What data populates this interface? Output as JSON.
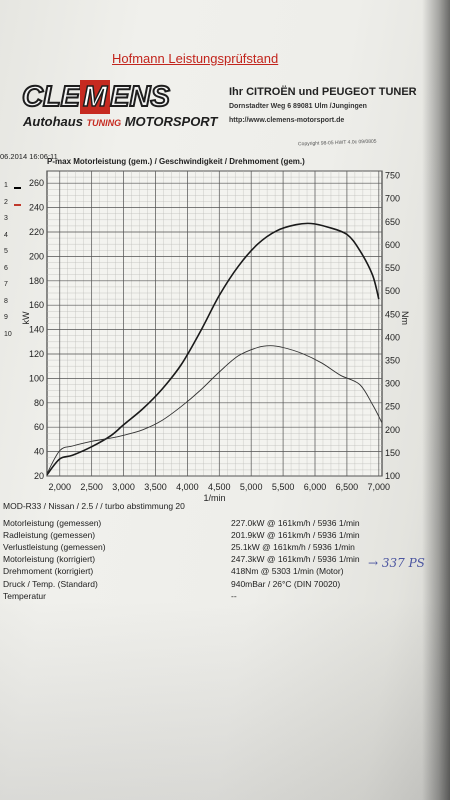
{
  "header": {
    "title": "Hofmann Leistungsprüfstand",
    "logo_text_left": "CLE",
    "logo_text_mid": "M",
    "logo_text_right": "ENS",
    "logo_sub_1": "Autohaus",
    "logo_sub_2": "TUNING",
    "logo_sub_3": "MOTORSPORT",
    "tuner": "Ihr CITROËN und PEUGEOT TUNER",
    "address": "Dornstadter Weg 6 89081 Ulm /Jungingen",
    "website": "http://www.clemens-motorsport.de",
    "timestamp": "06.2014 16:06:11",
    "print_info": "Copyright 98-05 HWT 4.0c 09/0805"
  },
  "legend": [
    "1",
    "2",
    "3",
    "4",
    "5",
    "6",
    "7",
    "8",
    "9",
    "10"
  ],
  "chart_data": {
    "type": "line",
    "title": "P-max Motorleistung (gem.) / Geschwindigkeit / Drehmoment (gem.)",
    "xlabel": "1/min",
    "ylabel_left": "kW",
    "ylabel_right": "Nm",
    "xlim": [
      1800,
      7050
    ],
    "ylim_left": [
      20,
      270
    ],
    "ylim_right": [
      100,
      760
    ],
    "x_ticks": [
      "2,000",
      "2,500",
      "3,000",
      "3,500",
      "4,000",
      "4,500",
      "5,000",
      "5,500",
      "6,000",
      "6,500",
      "7,000"
    ],
    "y_ticks_left": [
      "20",
      "40",
      "60",
      "80",
      "100",
      "120",
      "140",
      "160",
      "180",
      "200",
      "220",
      "240",
      "260"
    ],
    "y_ticks_right": [
      "100",
      "150",
      "200",
      "250",
      "300",
      "350",
      "400",
      "450",
      "500",
      "550",
      "600",
      "650",
      "700",
      "750"
    ],
    "grid": true,
    "series": [
      {
        "axis": "left",
        "color": "#1a1a1a",
        "x": [
          1800,
          2000,
          2200,
          2500,
          2800,
          3000,
          3300,
          3600,
          3900,
          4200,
          4500,
          4800,
          5100,
          5400,
          5700,
          5936,
          6200,
          6500,
          6700,
          6900,
          7000
        ],
        "y": [
          21,
          34,
          37,
          44,
          53,
          62,
          75,
          91,
          111,
          138,
          168,
          192,
          210,
          221,
          226,
          227,
          224,
          218,
          205,
          185,
          165
        ]
      },
      {
        "axis": "right",
        "color": "#333333",
        "x": [
          1800,
          2000,
          2200,
          2500,
          2800,
          3000,
          3300,
          3600,
          3900,
          4200,
          4500,
          4800,
          5100,
          5303,
          5500,
          5800,
          6100,
          6400,
          6700,
          6900,
          7050
        ],
        "y": [
          105,
          155,
          165,
          175,
          182,
          188,
          200,
          220,
          250,
          285,
          325,
          360,
          378,
          382,
          378,
          365,
          345,
          318,
          298,
          255,
          215
        ]
      }
    ]
  },
  "info": {
    "model": "MOD-R33 / Nissan / 2.5 /  / turbo abstimmung 20",
    "rows": [
      {
        "label": "Motorleistung (gemessen)",
        "value": "227.0kW @ 161km/h / 5936 1/min"
      },
      {
        "label": "Radleistung (gemessen)",
        "value": "201.9kW @ 161km/h / 5936 1/min"
      },
      {
        "label": "Verlustleistung (gemessen)",
        "value": "25.1kW @ 161km/h / 5936 1/min"
      },
      {
        "label": "Motorleistung (korrigiert)",
        "value": "247.3kW @ 161km/h / 5936 1/min"
      },
      {
        "label": "Drehmoment (korrigiert)",
        "value": "418Nm @ 5303 1/min (Motor)"
      },
      {
        "label": "Druck / Temp. (Standard)",
        "value": "940mBar / 26°C  (DIN 70020)"
      },
      {
        "label": "Temperatur",
        "value": "--"
      }
    ],
    "handwritten_note": "→ 337 PS"
  }
}
